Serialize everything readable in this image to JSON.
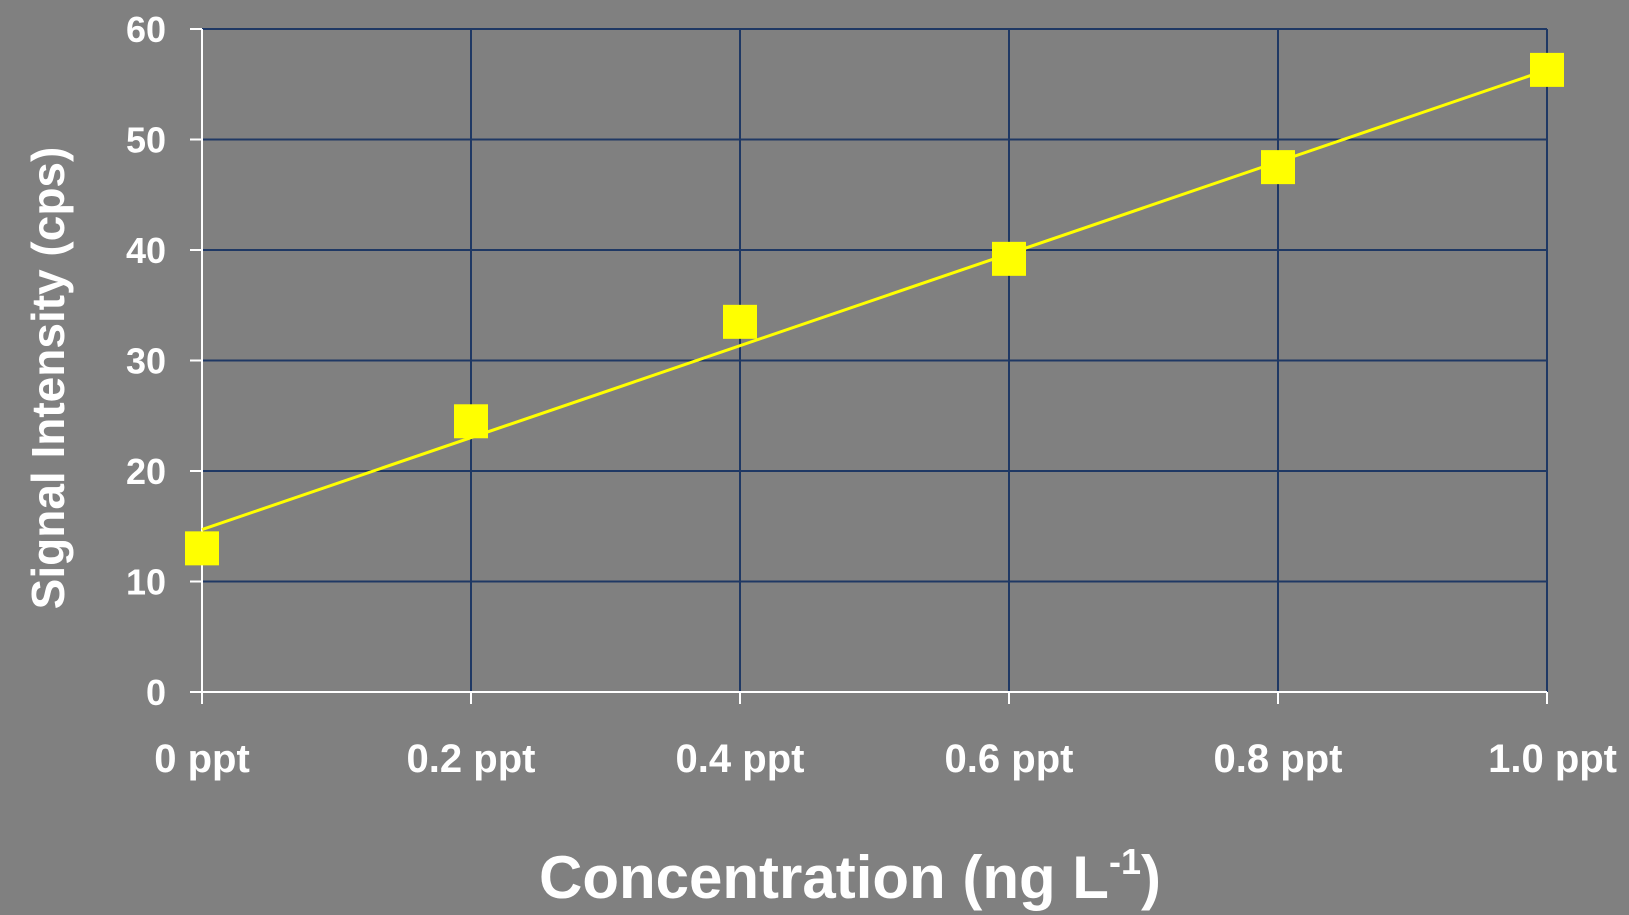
{
  "chart_data": {
    "type": "scatter",
    "xlabel": "Concentration (ng L",
    "xlabel_superscript": "-1",
    "xlabel_suffix": ")",
    "ylabel": "Signal Intensity (cps)",
    "x_tick_labels": [
      "0 ppt",
      "0.2 ppt",
      "0.4 ppt",
      "0.6 ppt",
      "0.8 ppt",
      "1.0 ppt"
    ],
    "y_tick_labels": [
      "0",
      "10",
      "20",
      "30",
      "40",
      "50",
      "60"
    ],
    "xlim": [
      0,
      1.0
    ],
    "ylim": [
      0,
      60
    ],
    "grid": true,
    "series": [
      {
        "marker": "square",
        "color": "#ffff00",
        "x": [
          0,
          0.2,
          0.4,
          0.6,
          0.8,
          1.0
        ],
        "y": [
          13.0,
          24.5,
          33.5,
          39.2,
          47.5,
          56.3
        ]
      }
    ],
    "trendline": {
      "type": "linear",
      "color": "#ffff00",
      "x": [
        0,
        1.0
      ],
      "y": [
        14.7,
        56.3
      ]
    },
    "colors": {
      "background": "#808080",
      "grid": "#1f3864",
      "axis": "#ffffff",
      "marker": "#ffff00"
    }
  }
}
